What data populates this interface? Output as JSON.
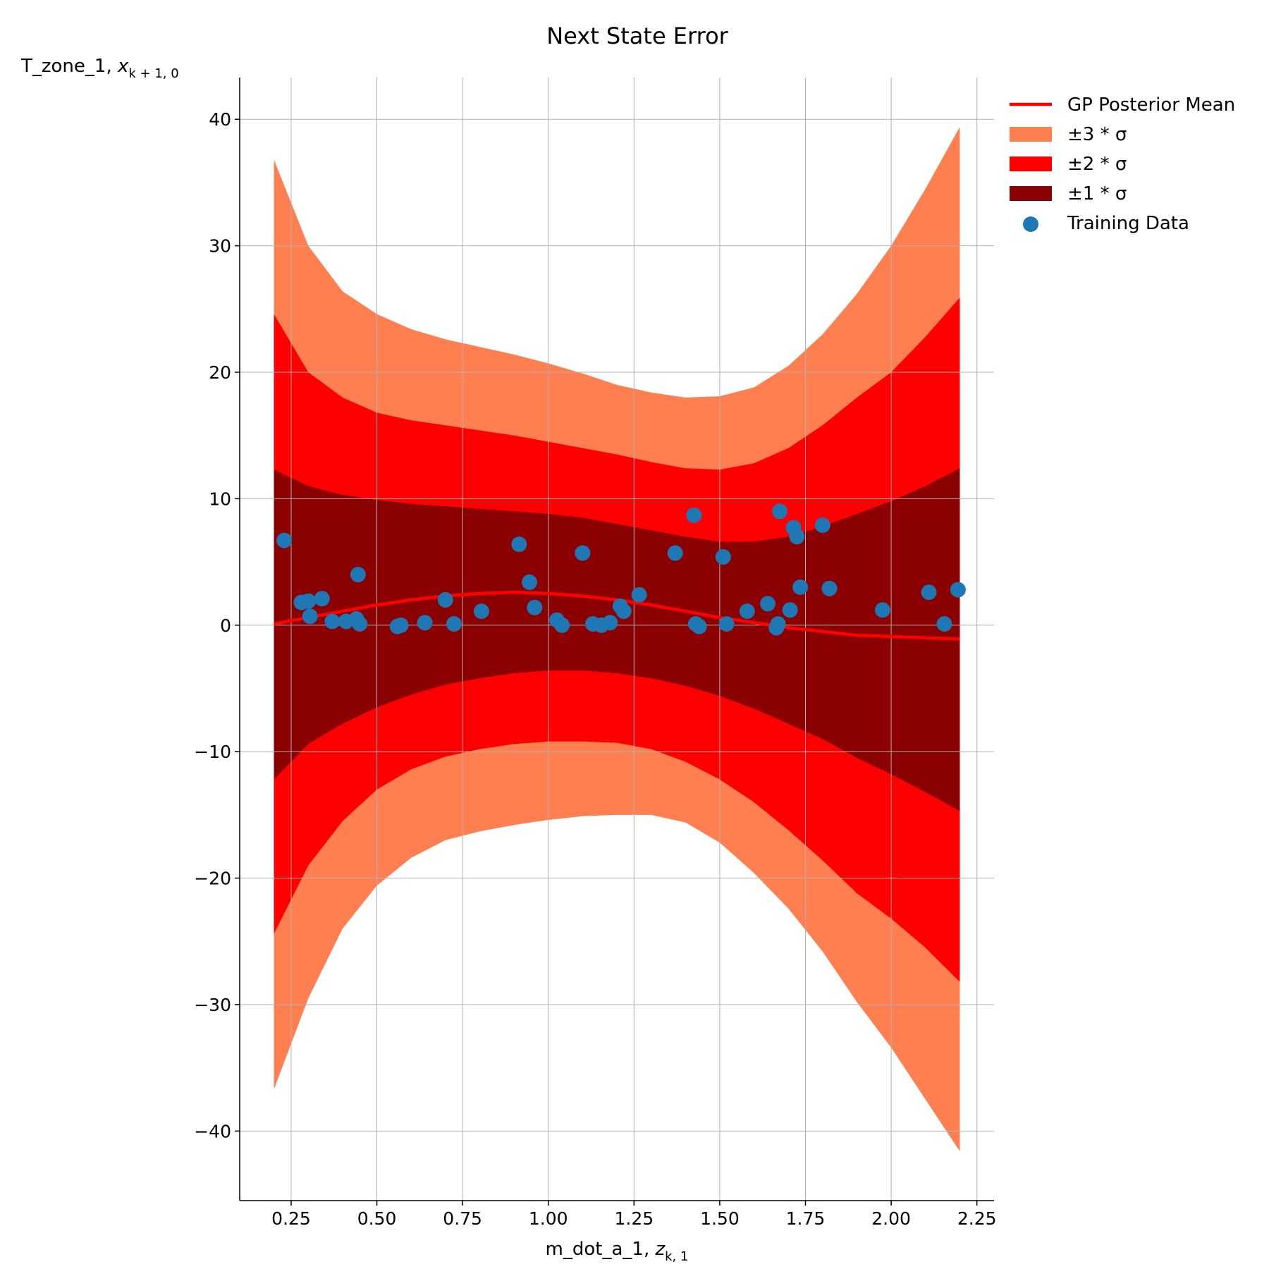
{
  "chart_data": {
    "type": "line",
    "title": "Next State Error",
    "xlabel": {
      "text": "m_dot_a_1, ",
      "var": "z",
      "sub": "k, 1"
    },
    "ylabel": {
      "text": "T_zone_1, ",
      "var": "x",
      "sub": "k + 1, 0"
    },
    "xlim": [
      0.1,
      2.3
    ],
    "ylim": [
      -45.5,
      43.3
    ],
    "xticks": [
      0.25,
      0.5,
      0.75,
      1.0,
      1.25,
      1.5,
      1.75,
      2.0,
      2.25
    ],
    "xtick_labels": [
      "0.25",
      "0.50",
      "0.75",
      "1.00",
      "1.25",
      "1.50",
      "1.75",
      "2.00",
      "2.25"
    ],
    "yticks": [
      -40,
      -30,
      -20,
      -10,
      0,
      10,
      20,
      30,
      40
    ],
    "ytick_labels": [
      "−40",
      "−30",
      "−20",
      "−10",
      "0",
      "10",
      "20",
      "30",
      "40"
    ],
    "grid": true,
    "legend_position": "outside-top-right",
    "legend": [
      {
        "label": "GP Posterior Mean",
        "kind": "line",
        "color": "#ff0000"
      },
      {
        "label": "±3 * σ",
        "kind": "patch",
        "color": "#ff7f50"
      },
      {
        "label": "±2 * σ",
        "kind": "patch",
        "color": "#ff0000"
      },
      {
        "label": "±1 * σ",
        "kind": "patch",
        "color": "#8b0000"
      },
      {
        "label": "Training Data",
        "kind": "marker",
        "color": "#1f77b4"
      }
    ],
    "colors": {
      "mean": "#ff0000",
      "band3": "#ff7f50",
      "band2": "#ff0000",
      "band1": "#8b0000",
      "points": "#1f77b4"
    },
    "x": [
      0.2,
      0.3,
      0.4,
      0.5,
      0.6,
      0.7,
      0.8,
      0.9,
      1.0,
      1.1,
      1.2,
      1.3,
      1.4,
      1.5,
      1.6,
      1.7,
      1.8,
      1.9,
      2.0,
      2.1,
      2.2
    ],
    "series": [
      {
        "name": "GP Posterior Mean",
        "values": [
          0.1,
          0.6,
          1.1,
          1.6,
          2.0,
          2.3,
          2.5,
          2.6,
          2.5,
          2.3,
          2.0,
          1.6,
          1.1,
          0.6,
          0.2,
          -0.2,
          -0.5,
          -0.8,
          -0.9,
          -1.0,
          -1.1
        ]
      },
      {
        "name": "±1 * σ",
        "lower": [
          -12.2,
          -9.4,
          -7.8,
          -6.5,
          -5.5,
          -4.7,
          -4.2,
          -3.8,
          -3.6,
          -3.6,
          -3.8,
          -4.2,
          -4.8,
          -5.6,
          -6.6,
          -7.8,
          -9.0,
          -10.5,
          -11.8,
          -13.2,
          -14.7
        ],
        "upper": [
          12.3,
          11.0,
          10.3,
          9.9,
          9.6,
          9.4,
          9.2,
          9.0,
          8.8,
          8.5,
          8.0,
          7.5,
          7.0,
          6.6,
          6.6,
          7.0,
          7.8,
          8.8,
          9.8,
          11.0,
          12.4
        ]
      },
      {
        "name": "±2 * σ",
        "lower": [
          -24.4,
          -19.0,
          -15.5,
          -13.0,
          -11.4,
          -10.4,
          -9.8,
          -9.4,
          -9.2,
          -9.2,
          -9.3,
          -9.8,
          -10.8,
          -12.2,
          -14.0,
          -16.2,
          -18.6,
          -21.2,
          -23.2,
          -25.5,
          -28.2
        ],
        "upper": [
          24.6,
          20.0,
          18.0,
          16.8,
          16.2,
          15.8,
          15.4,
          15.0,
          14.5,
          14.0,
          13.5,
          12.9,
          12.4,
          12.3,
          12.8,
          14.0,
          15.8,
          18.0,
          20.0,
          22.8,
          25.9
        ]
      },
      {
        "name": "±3 * σ",
        "lower": [
          -36.7,
          -29.5,
          -24.0,
          -20.6,
          -18.4,
          -17.0,
          -16.3,
          -15.8,
          -15.4,
          -15.1,
          -15.0,
          -15.0,
          -15.6,
          -17.2,
          -19.6,
          -22.4,
          -25.8,
          -29.8,
          -33.4,
          -37.5,
          -41.6
        ],
        "upper": [
          36.8,
          30.0,
          26.4,
          24.6,
          23.4,
          22.6,
          22.0,
          21.4,
          20.7,
          19.9,
          19.0,
          18.4,
          18.0,
          18.1,
          18.8,
          20.5,
          23.0,
          26.2,
          30.0,
          34.5,
          39.4
        ]
      },
      {
        "name": "Training Data",
        "points": [
          [
            0.23,
            6.7
          ],
          [
            0.28,
            1.8
          ],
          [
            0.3,
            1.9
          ],
          [
            0.305,
            0.7
          ],
          [
            0.34,
            2.1
          ],
          [
            0.37,
            0.3
          ],
          [
            0.41,
            0.3
          ],
          [
            0.44,
            0.5
          ],
          [
            0.445,
            4.0
          ],
          [
            0.45,
            0.1
          ],
          [
            0.56,
            -0.1
          ],
          [
            0.57,
            0.0
          ],
          [
            0.64,
            0.2
          ],
          [
            0.7,
            2.0
          ],
          [
            0.725,
            0.1
          ],
          [
            0.805,
            1.1
          ],
          [
            0.915,
            6.4
          ],
          [
            0.945,
            3.4
          ],
          [
            0.96,
            1.4
          ],
          [
            1.025,
            0.4
          ],
          [
            1.04,
            0.0
          ],
          [
            1.1,
            5.7
          ],
          [
            1.13,
            0.1
          ],
          [
            1.155,
            0.0
          ],
          [
            1.18,
            0.2
          ],
          [
            1.21,
            1.5
          ],
          [
            1.22,
            1.1
          ],
          [
            1.265,
            2.4
          ],
          [
            1.37,
            5.7
          ],
          [
            1.425,
            8.7
          ],
          [
            1.43,
            0.1
          ],
          [
            1.44,
            -0.1
          ],
          [
            1.51,
            5.4
          ],
          [
            1.52,
            0.1
          ],
          [
            1.58,
            1.1
          ],
          [
            1.64,
            1.7
          ],
          [
            1.665,
            -0.2
          ],
          [
            1.67,
            0.1
          ],
          [
            1.675,
            9.0
          ],
          [
            1.705,
            1.2
          ],
          [
            1.715,
            7.7
          ],
          [
            1.725,
            7.0
          ],
          [
            1.735,
            3.0
          ],
          [
            1.8,
            7.9
          ],
          [
            1.82,
            2.9
          ],
          [
            1.975,
            1.2
          ],
          [
            2.11,
            2.6
          ],
          [
            2.155,
            0.1
          ],
          [
            2.195,
            2.8
          ]
        ]
      }
    ]
  }
}
